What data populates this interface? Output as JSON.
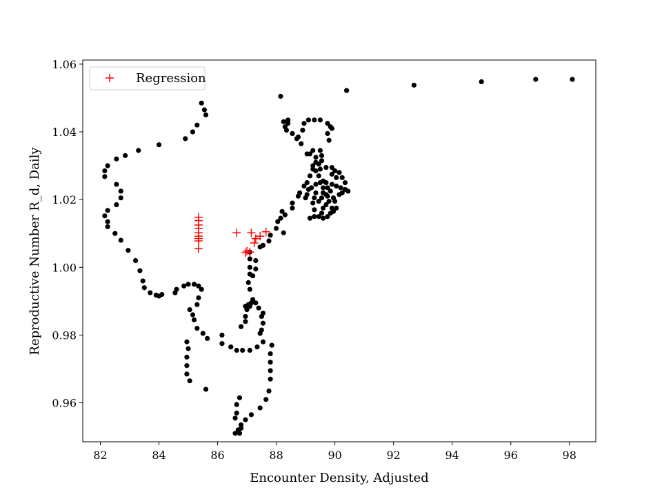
{
  "chart_data": {
    "type": "scatter",
    "xlabel": "Encounter Density, Adjusted",
    "ylabel": "Reproductive Number R_d, Daily",
    "xlim": [
      81.4,
      98.9
    ],
    "ylim": [
      0.9485,
      1.0612
    ],
    "xticks": [
      82,
      84,
      86,
      88,
      90,
      92,
      94,
      96,
      98
    ],
    "yticks": [
      0.96,
      0.98,
      1.0,
      1.02,
      1.04,
      1.06
    ],
    "grid": false,
    "legend": {
      "location": "top-left",
      "entries": [
        "Regression"
      ]
    },
    "series": [
      {
        "marker": "circle",
        "color": "#000000",
        "points": [
          [
            98.1,
            1.0555
          ],
          [
            96.85,
            1.0555
          ],
          [
            95.0,
            1.0548
          ],
          [
            92.7,
            1.0538
          ],
          [
            90.4,
            1.0522
          ],
          [
            88.15,
            1.0505
          ],
          [
            85.45,
            1.0485
          ],
          [
            85.55,
            1.0465
          ],
          [
            85.6,
            1.045
          ],
          [
            85.3,
            1.042
          ],
          [
            85.15,
            1.04
          ],
          [
            84.9,
            1.038
          ],
          [
            84.0,
            1.0362
          ],
          [
            83.3,
            1.0345
          ],
          [
            82.85,
            1.033
          ],
          [
            82.55,
            1.032
          ],
          [
            82.25,
            1.03
          ],
          [
            82.15,
            1.0285
          ],
          [
            82.15,
            1.0268
          ],
          [
            82.55,
            1.0245
          ],
          [
            82.7,
            1.0225
          ],
          [
            82.7,
            1.0205
          ],
          [
            82.55,
            1.0185
          ],
          [
            82.25,
            1.0168
          ],
          [
            82.15,
            1.0152
          ],
          [
            82.25,
            1.0135
          ],
          [
            82.25,
            1.012
          ],
          [
            82.5,
            1.01
          ],
          [
            82.7,
            1.008
          ],
          [
            82.95,
            1.005
          ],
          [
            83.2,
            1.002
          ],
          [
            83.35,
            0.999
          ],
          [
            83.45,
            0.996
          ],
          [
            83.5,
            0.994
          ],
          [
            83.7,
            0.9925
          ],
          [
            83.9,
            0.9918
          ],
          [
            84.0,
            0.9915
          ],
          [
            84.1,
            0.992
          ],
          [
            84.55,
            0.9925
          ],
          [
            84.6,
            0.9935
          ],
          [
            84.85,
            0.9945
          ],
          [
            85.0,
            0.995
          ],
          [
            85.2,
            0.995
          ],
          [
            85.35,
            0.9945
          ],
          [
            85.45,
            0.9935
          ],
          [
            85.35,
            0.991
          ],
          [
            85.3,
            0.989
          ],
          [
            85.05,
            0.9875
          ],
          [
            85.15,
            0.986
          ],
          [
            85.2,
            0.9845
          ],
          [
            85.3,
            0.982
          ],
          [
            85.5,
            0.9805
          ],
          [
            85.65,
            0.979
          ],
          [
            84.95,
            0.978
          ],
          [
            85.0,
            0.976
          ],
          [
            84.95,
            0.9735
          ],
          [
            84.95,
            0.971
          ],
          [
            84.95,
            0.9685
          ],
          [
            85.05,
            0.9665
          ],
          [
            85.6,
            0.964
          ],
          [
            86.15,
            0.98
          ],
          [
            86.15,
            0.9775
          ],
          [
            86.45,
            0.9765
          ],
          [
            86.65,
            0.9755
          ],
          [
            86.85,
            0.9755
          ],
          [
            87.1,
            0.9755
          ],
          [
            87.35,
            0.9765
          ],
          [
            87.55,
            0.978
          ],
          [
            87.85,
            0.977
          ],
          [
            87.8,
            0.9745
          ],
          [
            87.8,
            0.972
          ],
          [
            87.8,
            0.9695
          ],
          [
            87.8,
            0.967
          ],
          [
            87.75,
            0.9635
          ],
          [
            87.65,
            0.961
          ],
          [
            87.45,
            0.9585
          ],
          [
            87.15,
            0.9565
          ],
          [
            86.95,
            0.955
          ],
          [
            86.8,
            0.9535
          ],
          [
            86.7,
            0.952
          ],
          [
            86.6,
            0.951
          ],
          [
            86.6,
            0.9555
          ],
          [
            86.65,
            0.957
          ],
          [
            86.65,
            0.9595
          ],
          [
            86.75,
            0.9615
          ],
          [
            86.8,
            0.9525
          ],
          [
            86.75,
            0.951
          ],
          [
            87.55,
            0.9835
          ],
          [
            87.5,
            0.9815
          ],
          [
            87.45,
            0.9805
          ],
          [
            87.5,
            0.9855
          ],
          [
            87.55,
            0.9865
          ],
          [
            87.4,
            0.988
          ],
          [
            87.3,
            0.9895
          ],
          [
            87.2,
            0.9905
          ],
          [
            87.15,
            0.9895
          ],
          [
            87.1,
            0.9885
          ],
          [
            87.05,
            0.989
          ],
          [
            86.95,
            0.9885
          ],
          [
            87.0,
            0.9875
          ],
          [
            86.95,
            0.9855
          ],
          [
            86.95,
            0.984
          ],
          [
            86.8,
            0.9825
          ],
          [
            87.1,
            0.9935
          ],
          [
            87.05,
            0.9955
          ],
          [
            87.1,
            0.998
          ],
          [
            87.1,
            1.0
          ],
          [
            87.1,
            1.0025
          ],
          [
            87.1,
            1.0045
          ],
          [
            87.3,
            0.9995
          ],
          [
            87.3,
            1.002
          ],
          [
            87.2,
            0.9975
          ],
          [
            87.45,
            1.006
          ],
          [
            87.55,
            1.0065
          ],
          [
            87.75,
            1.0078
          ],
          [
            87.8,
            1.0095
          ],
          [
            88.0,
            1.0115
          ],
          [
            88.05,
            1.0135
          ],
          [
            88.25,
            1.0102
          ],
          [
            88.2,
            1.0165
          ],
          [
            88.55,
            1.0175
          ],
          [
            88.55,
            1.019
          ],
          [
            88.75,
            1.021
          ],
          [
            88.8,
            1.022
          ],
          [
            88.95,
            1.024
          ],
          [
            89.05,
            1.025
          ],
          [
            89.15,
            1.027
          ],
          [
            89.25,
            1.029
          ],
          [
            89.35,
            1.031
          ],
          [
            89.35,
            1.0325
          ],
          [
            89.15,
            1.0335
          ],
          [
            89.25,
            1.0345
          ],
          [
            89.5,
            1.0345
          ],
          [
            89.55,
            1.033
          ],
          [
            89.55,
            1.0315
          ],
          [
            89.45,
            1.0305
          ],
          [
            89.25,
            1.03
          ],
          [
            89.05,
            1.0335
          ],
          [
            88.85,
            1.0365
          ],
          [
            88.7,
            1.038
          ],
          [
            88.55,
            1.0395
          ],
          [
            88.35,
            1.0405
          ],
          [
            88.3,
            1.0415
          ],
          [
            88.4,
            1.0425
          ],
          [
            88.4,
            1.0435
          ],
          [
            88.25,
            1.043
          ],
          [
            88.55,
            1.0395
          ],
          [
            88.75,
            1.0385
          ],
          [
            88.9,
            1.0405
          ],
          [
            88.95,
            1.0425
          ],
          [
            89.1,
            1.0435
          ],
          [
            89.3,
            1.0435
          ],
          [
            89.5,
            1.0435
          ],
          [
            89.75,
            1.0425
          ],
          [
            89.85,
            1.0415
          ],
          [
            89.75,
            1.0395
          ],
          [
            89.8,
            1.0375
          ],
          [
            89.9,
            1.041
          ],
          [
            89.2,
            1.0235
          ],
          [
            89.35,
            1.0245
          ],
          [
            89.5,
            1.025
          ],
          [
            89.7,
            1.025
          ],
          [
            89.9,
            1.0245
          ],
          [
            90.05,
            1.024
          ],
          [
            90.2,
            1.0235
          ],
          [
            90.35,
            1.023
          ],
          [
            90.45,
            1.0225
          ],
          [
            90.25,
            1.022
          ],
          [
            90.0,
            1.0195
          ],
          [
            89.7,
            1.0185
          ],
          [
            89.6,
            1.0175
          ],
          [
            89.55,
            1.016
          ],
          [
            89.45,
            1.015
          ],
          [
            89.3,
            1.015
          ],
          [
            89.15,
            1.0145
          ],
          [
            89.25,
            1.019
          ],
          [
            89.3,
            1.0205
          ],
          [
            89.35,
            1.022
          ],
          [
            89.55,
            1.0205
          ],
          [
            89.7,
            1.0215
          ],
          [
            89.85,
            1.0225
          ],
          [
            89.75,
            1.0235
          ],
          [
            89.6,
            1.0255
          ],
          [
            89.45,
            1.027
          ],
          [
            89.35,
            1.0285
          ],
          [
            89.5,
            1.029
          ],
          [
            89.7,
            1.0295
          ],
          [
            89.9,
            1.0295
          ],
          [
            90.0,
            1.0285
          ],
          [
            90.15,
            1.028
          ],
          [
            90.25,
            1.0265
          ],
          [
            90.35,
            1.025
          ],
          [
            90.05,
            1.0265
          ],
          [
            89.9,
            1.0275
          ],
          [
            89.6,
            1.0235
          ],
          [
            89.6,
            1.022
          ],
          [
            89.75,
            1.021
          ],
          [
            89.8,
            1.0195
          ],
          [
            89.9,
            1.0175
          ],
          [
            89.85,
            1.016
          ],
          [
            89.75,
            1.015
          ],
          [
            89.6,
            1.0145
          ],
          [
            89.95,
            1.0165
          ],
          [
            90.05,
            1.0175
          ],
          [
            89.45,
            1.0195
          ],
          [
            89.3,
            1.017
          ],
          [
            89.95,
            1.0205
          ],
          [
            90.15,
            1.0215
          ],
          [
            89.1,
            1.023
          ],
          [
            89.05,
            1.0215
          ],
          [
            89.0,
            1.0205
          ],
          [
            88.3,
            1.0155
          ],
          [
            88.15,
            1.0145
          ]
        ]
      },
      {
        "name": "Regression",
        "marker": "plus",
        "color": "#ff0000",
        "points": [
          [
            85.35,
            1.0148
          ],
          [
            85.35,
            1.0138
          ],
          [
            85.35,
            1.0125
          ],
          [
            85.35,
            1.0115
          ],
          [
            85.35,
            1.0102
          ],
          [
            85.35,
            1.0092
          ],
          [
            85.35,
            1.0085
          ],
          [
            85.35,
            1.0078
          ],
          [
            85.35,
            1.0055
          ],
          [
            86.65,
            1.0102
          ],
          [
            87.15,
            1.0102
          ],
          [
            87.3,
            1.0085
          ],
          [
            87.45,
            1.0092
          ],
          [
            87.65,
            1.0105
          ],
          [
            87.25,
            1.0072
          ],
          [
            87.0,
            1.0048
          ],
          [
            86.95,
            1.0043
          ],
          [
            87.1,
            1.0045
          ]
        ]
      }
    ]
  }
}
